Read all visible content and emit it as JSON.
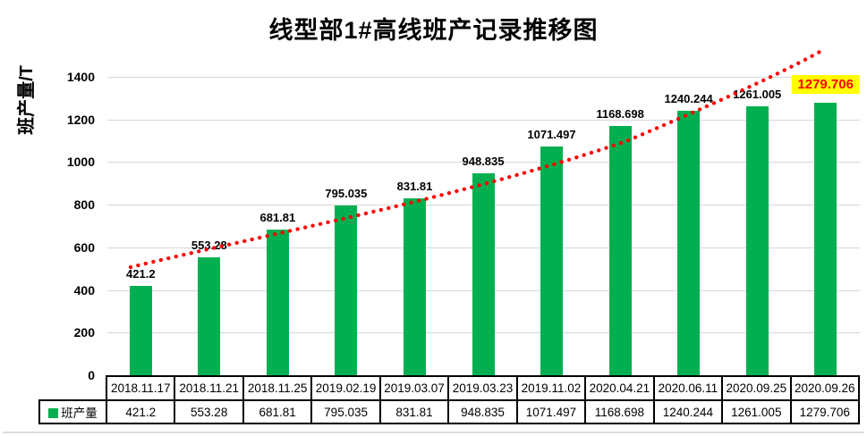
{
  "chart": {
    "title": "线型部1#高线班产记录推移图",
    "y_axis_title": "班产量/T",
    "legend_label": "班产量"
  },
  "chart_data": {
    "type": "bar",
    "title": "线型部1#高线班产记录推移图",
    "xlabel": "",
    "ylabel": "班产量/T",
    "categories": [
      "2018.11.17",
      "2018.11.21",
      "2018.11.25",
      "2019.02.19",
      "2019.03.07",
      "2019.03.23",
      "2019.11.02",
      "2020.04.21",
      "2020.06.11",
      "2020.09.25",
      "2020.09.26"
    ],
    "series": [
      {
        "name": "班产量",
        "values": [
          421.2,
          553.28,
          681.81,
          795.035,
          831.81,
          948.835,
          1071.497,
          1168.698,
          1240.244,
          1261.005,
          1279.706
        ],
        "labels": [
          "421.2",
          "553.28",
          "681.81",
          "795.035",
          "831.81",
          "948.835",
          "1071.497",
          "1168.698",
          "1240.244",
          "1261.005",
          "1279.706"
        ]
      }
    ],
    "ylim": [
      0,
      1500
    ],
    "y_ticks": [
      0,
      200,
      400,
      600,
      800,
      1000,
      1200,
      1400
    ],
    "grid": true,
    "legend_position": "table-left",
    "bar_color": "#00B050",
    "gridline_color": "#D6D6D6",
    "trendline": {
      "style": "dotted",
      "color": "#FF0000"
    },
    "highlight_last": {
      "text_color": "#FF0000",
      "background": "#FFFF00"
    },
    "data_table_shown": true
  }
}
